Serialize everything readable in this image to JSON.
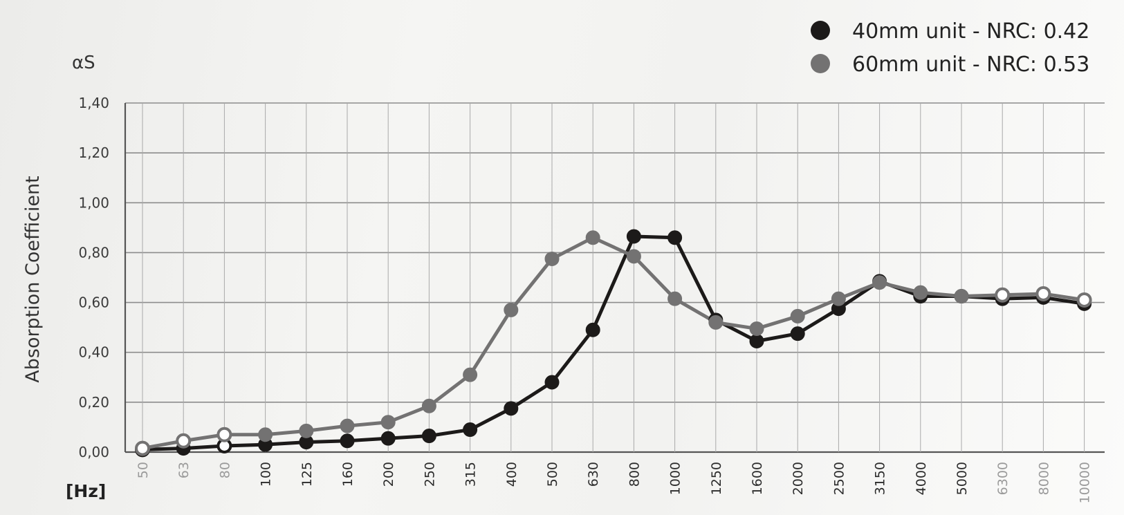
{
  "chart_data": {
    "type": "line",
    "unit_label": "αS",
    "ylabel": "Absorption Coefficient",
    "xlabel": "[Hz]",
    "ylim": [
      0,
      1.4
    ],
    "y_ticks": [
      "0,00",
      "0,20",
      "0,40",
      "0,60",
      "0,80",
      "1,00",
      "1,20",
      "1,40"
    ],
    "categories": [
      "50",
      "63",
      "80",
      "100",
      "125",
      "160",
      "200",
      "250",
      "315",
      "400",
      "500",
      "630",
      "800",
      "1000",
      "1250",
      "1600",
      "2000",
      "2500",
      "3150",
      "4000",
      "5000",
      "6300",
      "8000",
      "10000"
    ],
    "dimmed_categories": [
      "50",
      "63",
      "80",
      "6300",
      "8000",
      "10000"
    ],
    "grid": true,
    "legend_position": "top-right",
    "series": [
      {
        "name": "40mm unit - NRC: 0.42",
        "color": "#1c1a19",
        "values": [
          0.01,
          0.015,
          0.025,
          0.03,
          0.04,
          0.045,
          0.055,
          0.065,
          0.09,
          0.175,
          0.28,
          0.49,
          0.865,
          0.86,
          0.53,
          0.445,
          0.475,
          0.575,
          0.685,
          0.625,
          0.625,
          0.615,
          0.62,
          0.595
        ],
        "hollow": [
          true,
          false,
          true,
          false,
          false,
          false,
          false,
          false,
          false,
          false,
          false,
          false,
          false,
          false,
          false,
          false,
          false,
          false,
          false,
          false,
          false,
          false,
          false,
          false
        ]
      },
      {
        "name": "60mm unit - NRC: 0.53",
        "color": "#737272",
        "values": [
          0.015,
          0.045,
          0.07,
          0.07,
          0.085,
          0.105,
          0.12,
          0.185,
          0.31,
          0.57,
          0.775,
          0.86,
          0.785,
          0.615,
          0.52,
          0.495,
          0.545,
          0.615,
          0.68,
          0.64,
          0.625,
          0.63,
          0.635,
          0.61
        ],
        "hollow": [
          true,
          true,
          true,
          false,
          false,
          false,
          false,
          false,
          false,
          false,
          false,
          false,
          false,
          false,
          false,
          false,
          false,
          false,
          false,
          false,
          false,
          true,
          true,
          true
        ]
      }
    ]
  }
}
